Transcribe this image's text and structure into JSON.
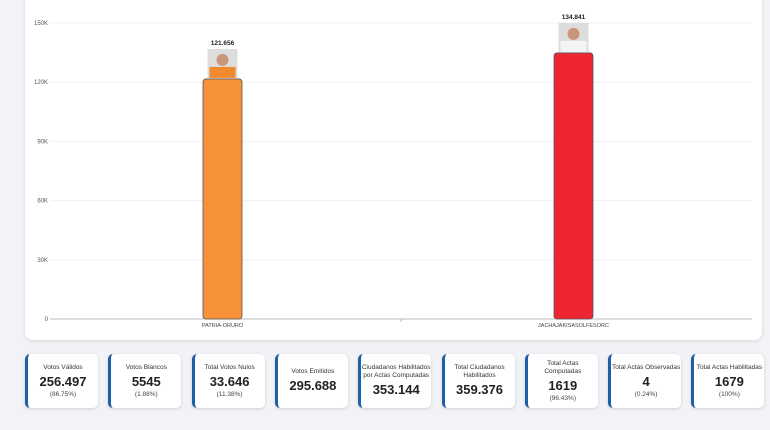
{
  "chart_data": {
    "type": "bar",
    "categories": [
      "PATRIA-ORURO",
      "JACHAJAKISASOLFESORC"
    ],
    "values": [
      121656,
      134841
    ],
    "value_labels": [
      "121.656",
      "134.841"
    ],
    "colors": [
      "#f7913a",
      "#ee2633"
    ],
    "ylim": [
      0,
      150000
    ],
    "yticks": [
      "0",
      "30K",
      "60K",
      "90K",
      "120K",
      "150K"
    ],
    "ytick_values": [
      0,
      30000,
      60000,
      90000,
      120000,
      150000
    ],
    "grid": true,
    "candidate_photos": true
  },
  "stats": [
    {
      "label": "Votos Válidos",
      "value": "256.497",
      "pct": "(86.75%)"
    },
    {
      "label": "Votos Blancos",
      "value": "5545",
      "pct": "(1.88%)"
    },
    {
      "label": "Total Votos Nulos",
      "value": "33.646",
      "pct": "(11.38%)"
    },
    {
      "label": "Votos Emitidos",
      "value": "295.688",
      "pct": ""
    },
    {
      "label": "Ciudadanos Habilitados por Actas Computadas",
      "value": "353.144",
      "pct": ""
    },
    {
      "label": "Total Ciudadanos Habilitados",
      "value": "359.376",
      "pct": ""
    },
    {
      "label": "Total Actas Computadas",
      "value": "1619",
      "pct": "(96.43%)"
    },
    {
      "label": "Total Actas Observadas",
      "value": "4",
      "pct": "(0.24%)"
    },
    {
      "label": "Total Actas Habilitadas",
      "value": "1679",
      "pct": "(100%)"
    }
  ]
}
